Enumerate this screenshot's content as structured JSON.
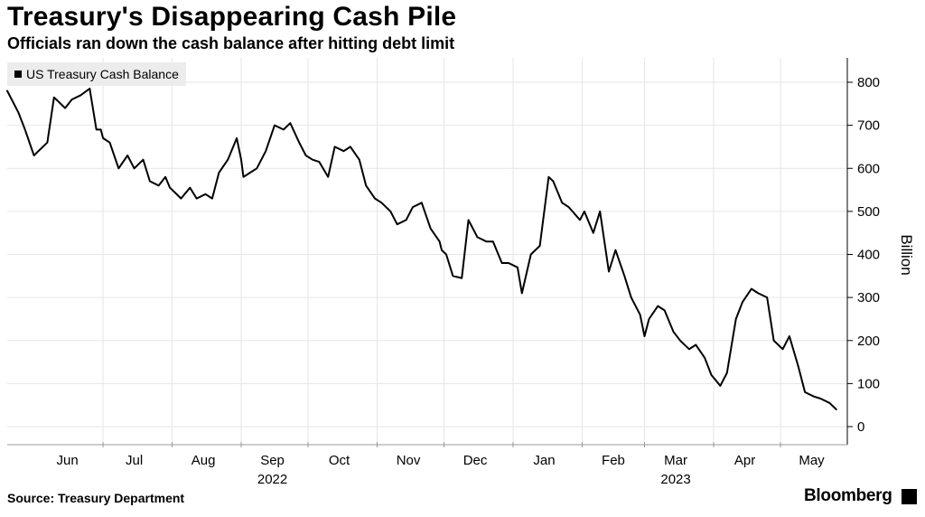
{
  "header": {
    "title": "Treasury's Disappearing Cash Pile",
    "subtitle": "Officials ran down the cash balance after hitting debt limit"
  },
  "footer": {
    "source": "Source: Treasury Department",
    "brand": "Bloomberg",
    "brand_icon": "bloomberg-logo-icon"
  },
  "chart_data": {
    "type": "line",
    "title": "Treasury's Disappearing Cash Pile",
    "subtitle": "Officials ran down the cash balance after hitting debt limit",
    "ylabel": "Billion",
    "ylim": [
      0,
      850
    ],
    "yticks": [
      0,
      100,
      200,
      300,
      400,
      500,
      600,
      700,
      800
    ],
    "ytick_labels": [
      "0",
      "100",
      "200",
      "300",
      "400",
      "500",
      "600",
      "700",
      "800"
    ],
    "xlim": [
      "2022-05-19",
      "2023-05-31"
    ],
    "x_month_ticks": [
      {
        "date": "2022-06-15",
        "label": "Jun"
      },
      {
        "date": "2022-07-15",
        "label": "Jul"
      },
      {
        "date": "2022-08-15",
        "label": "Aug"
      },
      {
        "date": "2022-09-15",
        "label": "Sep"
      },
      {
        "date": "2022-10-15",
        "label": "Oct"
      },
      {
        "date": "2022-11-15",
        "label": "Nov"
      },
      {
        "date": "2022-12-15",
        "label": "Dec"
      },
      {
        "date": "2023-01-15",
        "label": "Jan"
      },
      {
        "date": "2023-02-15",
        "label": "Feb"
      },
      {
        "date": "2023-03-15",
        "label": "Mar"
      },
      {
        "date": "2023-04-15",
        "label": "Apr"
      },
      {
        "date": "2023-05-15",
        "label": "May"
      }
    ],
    "year_labels": [
      {
        "date": "2022-09-15",
        "label": "2022"
      },
      {
        "date": "2023-03-15",
        "label": "2023"
      }
    ],
    "month_gridlines": [
      "2022-07-01",
      "2022-08-01",
      "2022-09-01",
      "2022-10-01",
      "2022-11-01",
      "2022-12-01",
      "2023-01-01",
      "2023-02-01",
      "2023-03-01",
      "2023-04-01",
      "2023-05-01"
    ],
    "grid": true,
    "legend": {
      "placement": "top-left",
      "entries": [
        "US Treasury Cash Balance"
      ]
    },
    "series": [
      {
        "name": "US Treasury Cash Balance",
        "color": "#000000",
        "x": [
          "2022-05-19",
          "2022-05-24",
          "2022-05-27",
          "2022-05-31",
          "2022-06-02",
          "2022-06-06",
          "2022-06-09",
          "2022-06-11",
          "2022-06-14",
          "2022-06-17",
          "2022-06-21",
          "2022-06-25",
          "2022-06-28",
          "2022-06-30",
          "2022-07-01",
          "2022-07-04",
          "2022-07-08",
          "2022-07-12",
          "2022-07-15",
          "2022-07-19",
          "2022-07-22",
          "2022-07-26",
          "2022-07-29",
          "2022-07-31",
          "2022-08-02",
          "2022-08-05",
          "2022-08-09",
          "2022-08-12",
          "2022-08-16",
          "2022-08-19",
          "2022-08-22",
          "2022-08-26",
          "2022-08-30",
          "2022-09-01",
          "2022-09-02",
          "2022-09-05",
          "2022-09-08",
          "2022-09-12",
          "2022-09-16",
          "2022-09-20",
          "2022-09-23",
          "2022-09-27",
          "2022-09-30",
          "2022-10-03",
          "2022-10-06",
          "2022-10-10",
          "2022-10-13",
          "2022-10-17",
          "2022-10-20",
          "2022-10-24",
          "2022-10-27",
          "2022-10-31",
          "2022-11-03",
          "2022-11-07",
          "2022-11-10",
          "2022-11-14",
          "2022-11-17",
          "2022-11-21",
          "2022-11-25",
          "2022-11-29",
          "2022-11-30",
          "2022-12-02",
          "2022-12-05",
          "2022-12-09",
          "2022-12-12",
          "2022-12-16",
          "2022-12-20",
          "2022-12-23",
          "2022-12-27",
          "2022-12-30",
          "2023-01-03",
          "2023-01-05",
          "2023-01-09",
          "2023-01-13",
          "2023-01-17",
          "2023-01-19",
          "2023-01-23",
          "2023-01-26",
          "2023-01-31",
          "2023-02-02",
          "2023-02-06",
          "2023-02-09",
          "2023-02-13",
          "2023-02-16",
          "2023-02-20",
          "2023-02-23",
          "2023-02-27",
          "2023-03-01",
          "2023-03-03",
          "2023-03-07",
          "2023-03-10",
          "2023-03-14",
          "2023-03-17",
          "2023-03-21",
          "2023-03-24",
          "2023-03-28",
          "2023-03-31",
          "2023-04-04",
          "2023-04-07",
          "2023-04-11",
          "2023-04-14",
          "2023-04-18",
          "2023-04-21",
          "2023-04-25",
          "2023-04-28",
          "2023-05-02",
          "2023-05-05",
          "2023-05-09",
          "2023-05-12",
          "2023-05-16",
          "2023-05-19",
          "2023-05-23",
          "2023-05-26"
        ],
        "values": [
          780,
          730,
          690,
          630,
          640,
          660,
          765,
          755,
          740,
          760,
          770,
          785,
          690,
          690,
          670,
          660,
          600,
          630,
          600,
          620,
          570,
          560,
          580,
          555,
          545,
          530,
          555,
          530,
          540,
          530,
          590,
          620,
          670,
          620,
          580,
          590,
          600,
          640,
          700,
          690,
          705,
          660,
          630,
          620,
          615,
          580,
          650,
          640,
          650,
          620,
          560,
          530,
          520,
          500,
          470,
          480,
          510,
          520,
          460,
          430,
          410,
          400,
          350,
          345,
          480,
          440,
          430,
          430,
          380,
          380,
          370,
          310,
          400,
          420,
          580,
          570,
          520,
          510,
          480,
          500,
          450,
          500,
          360,
          410,
          350,
          300,
          260,
          210,
          250,
          280,
          270,
          220,
          200,
          180,
          190,
          160,
          120,
          95,
          125,
          250,
          290,
          320,
          310,
          300,
          200,
          180,
          210,
          140,
          80,
          70,
          65,
          55,
          40
        ]
      }
    ]
  }
}
